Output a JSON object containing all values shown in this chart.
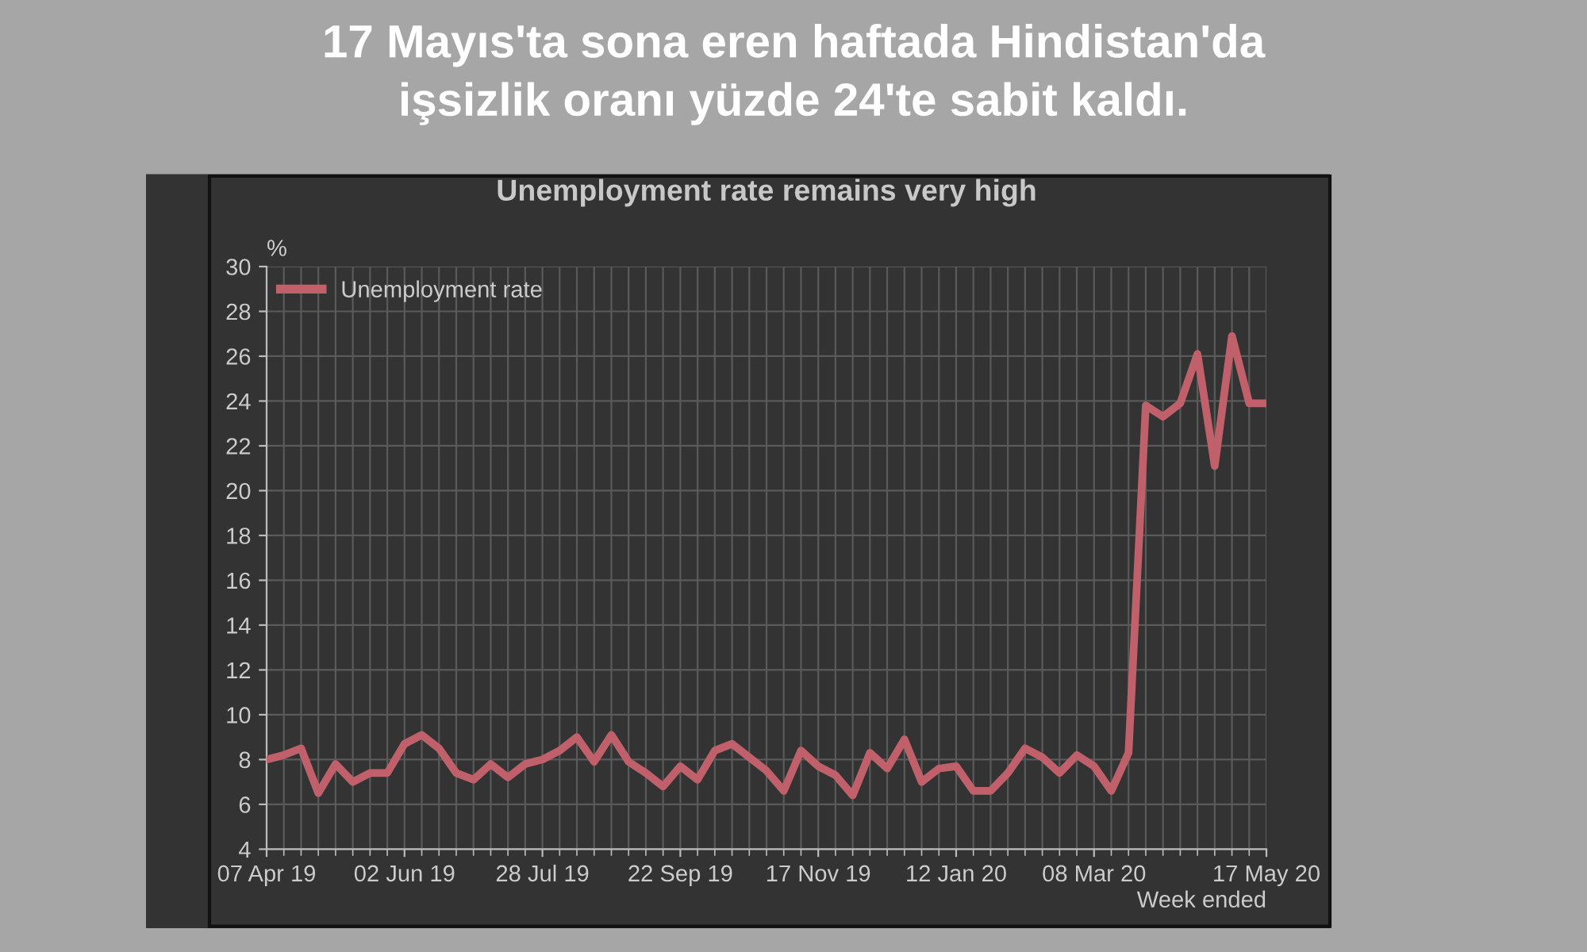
{
  "chart_data": {
    "type": "line",
    "title": "17 Mayıs'ta sona eren haftada Hindistan'da\nişsizlik oranı yüzde 24'te sabit kaldı.",
    "subtitle": "Unemployment rate remains very high",
    "ylabel": "%",
    "xlabel": "Week ended",
    "x": [
      "2019-04-07",
      "2019-04-14",
      "2019-04-21",
      "2019-04-28",
      "2019-05-05",
      "2019-05-12",
      "2019-05-19",
      "2019-05-26",
      "2019-06-02",
      "2019-06-09",
      "2019-06-16",
      "2019-06-23",
      "2019-06-30",
      "2019-07-07",
      "2019-07-14",
      "2019-07-21",
      "2019-07-28",
      "2019-08-04",
      "2019-08-11",
      "2019-08-18",
      "2019-08-25",
      "2019-09-01",
      "2019-09-08",
      "2019-09-15",
      "2019-09-22",
      "2019-09-29",
      "2019-10-06",
      "2019-10-13",
      "2019-10-20",
      "2019-10-27",
      "2019-11-03",
      "2019-11-10",
      "2019-11-17",
      "2019-11-24",
      "2019-12-01",
      "2019-12-08",
      "2019-12-15",
      "2019-12-22",
      "2019-12-29",
      "2020-01-05",
      "2020-01-12",
      "2020-01-19",
      "2020-01-26",
      "2020-02-02",
      "2020-02-09",
      "2020-02-16",
      "2020-02-23",
      "2020-03-01",
      "2020-03-08",
      "2020-03-15",
      "2020-03-22",
      "2020-03-29",
      "2020-04-05",
      "2020-04-12",
      "2020-04-19",
      "2020-04-26",
      "2020-05-03",
      "2020-05-10",
      "2020-05-17"
    ],
    "series": [
      {
        "name": "Unemployment rate",
        "color": "#c0606a",
        "values": [
          8.0,
          8.2,
          8.5,
          6.5,
          7.8,
          7.0,
          7.4,
          7.4,
          8.7,
          9.1,
          8.5,
          7.4,
          7.1,
          7.8,
          7.2,
          7.8,
          8.0,
          8.4,
          9.0,
          7.9,
          9.1,
          7.9,
          7.4,
          6.8,
          7.7,
          7.1,
          8.4,
          8.7,
          8.1,
          7.5,
          6.6,
          8.4,
          7.7,
          7.3,
          6.4,
          8.3,
          7.6,
          8.9,
          7.0,
          7.6,
          7.7,
          6.6,
          6.6,
          7.4,
          8.5,
          8.1,
          7.4,
          8.2,
          7.7,
          6.6,
          8.3,
          23.8,
          23.3,
          23.9,
          26.1,
          21.1,
          26.9,
          23.9,
          23.9
        ]
      }
    ],
    "xlim": [
      "2019-04-07",
      "2020-05-17"
    ],
    "xticks": [
      {
        "value": "2019-04-07",
        "label": "07 Apr 19"
      },
      {
        "value": "2019-06-02",
        "label": "02 Jun 19"
      },
      {
        "value": "2019-07-28",
        "label": "28 Jul 19"
      },
      {
        "value": "2019-09-22",
        "label": "22 Sep 19"
      },
      {
        "value": "2019-11-17",
        "label": "17 Nov 19"
      },
      {
        "value": "2020-01-12",
        "label": "12 Jan 20"
      },
      {
        "value": "2020-03-08",
        "label": "08 Mar 20"
      },
      {
        "value": "2020-05-17",
        "label": "17 May 20"
      }
    ],
    "ylim": [
      4,
      30
    ],
    "yticks": [
      4,
      6,
      8,
      10,
      12,
      14,
      16,
      18,
      20,
      22,
      24,
      26,
      28,
      30
    ],
    "grid": true,
    "legend": "top left",
    "marker": "none",
    "line_style": "solid"
  }
}
